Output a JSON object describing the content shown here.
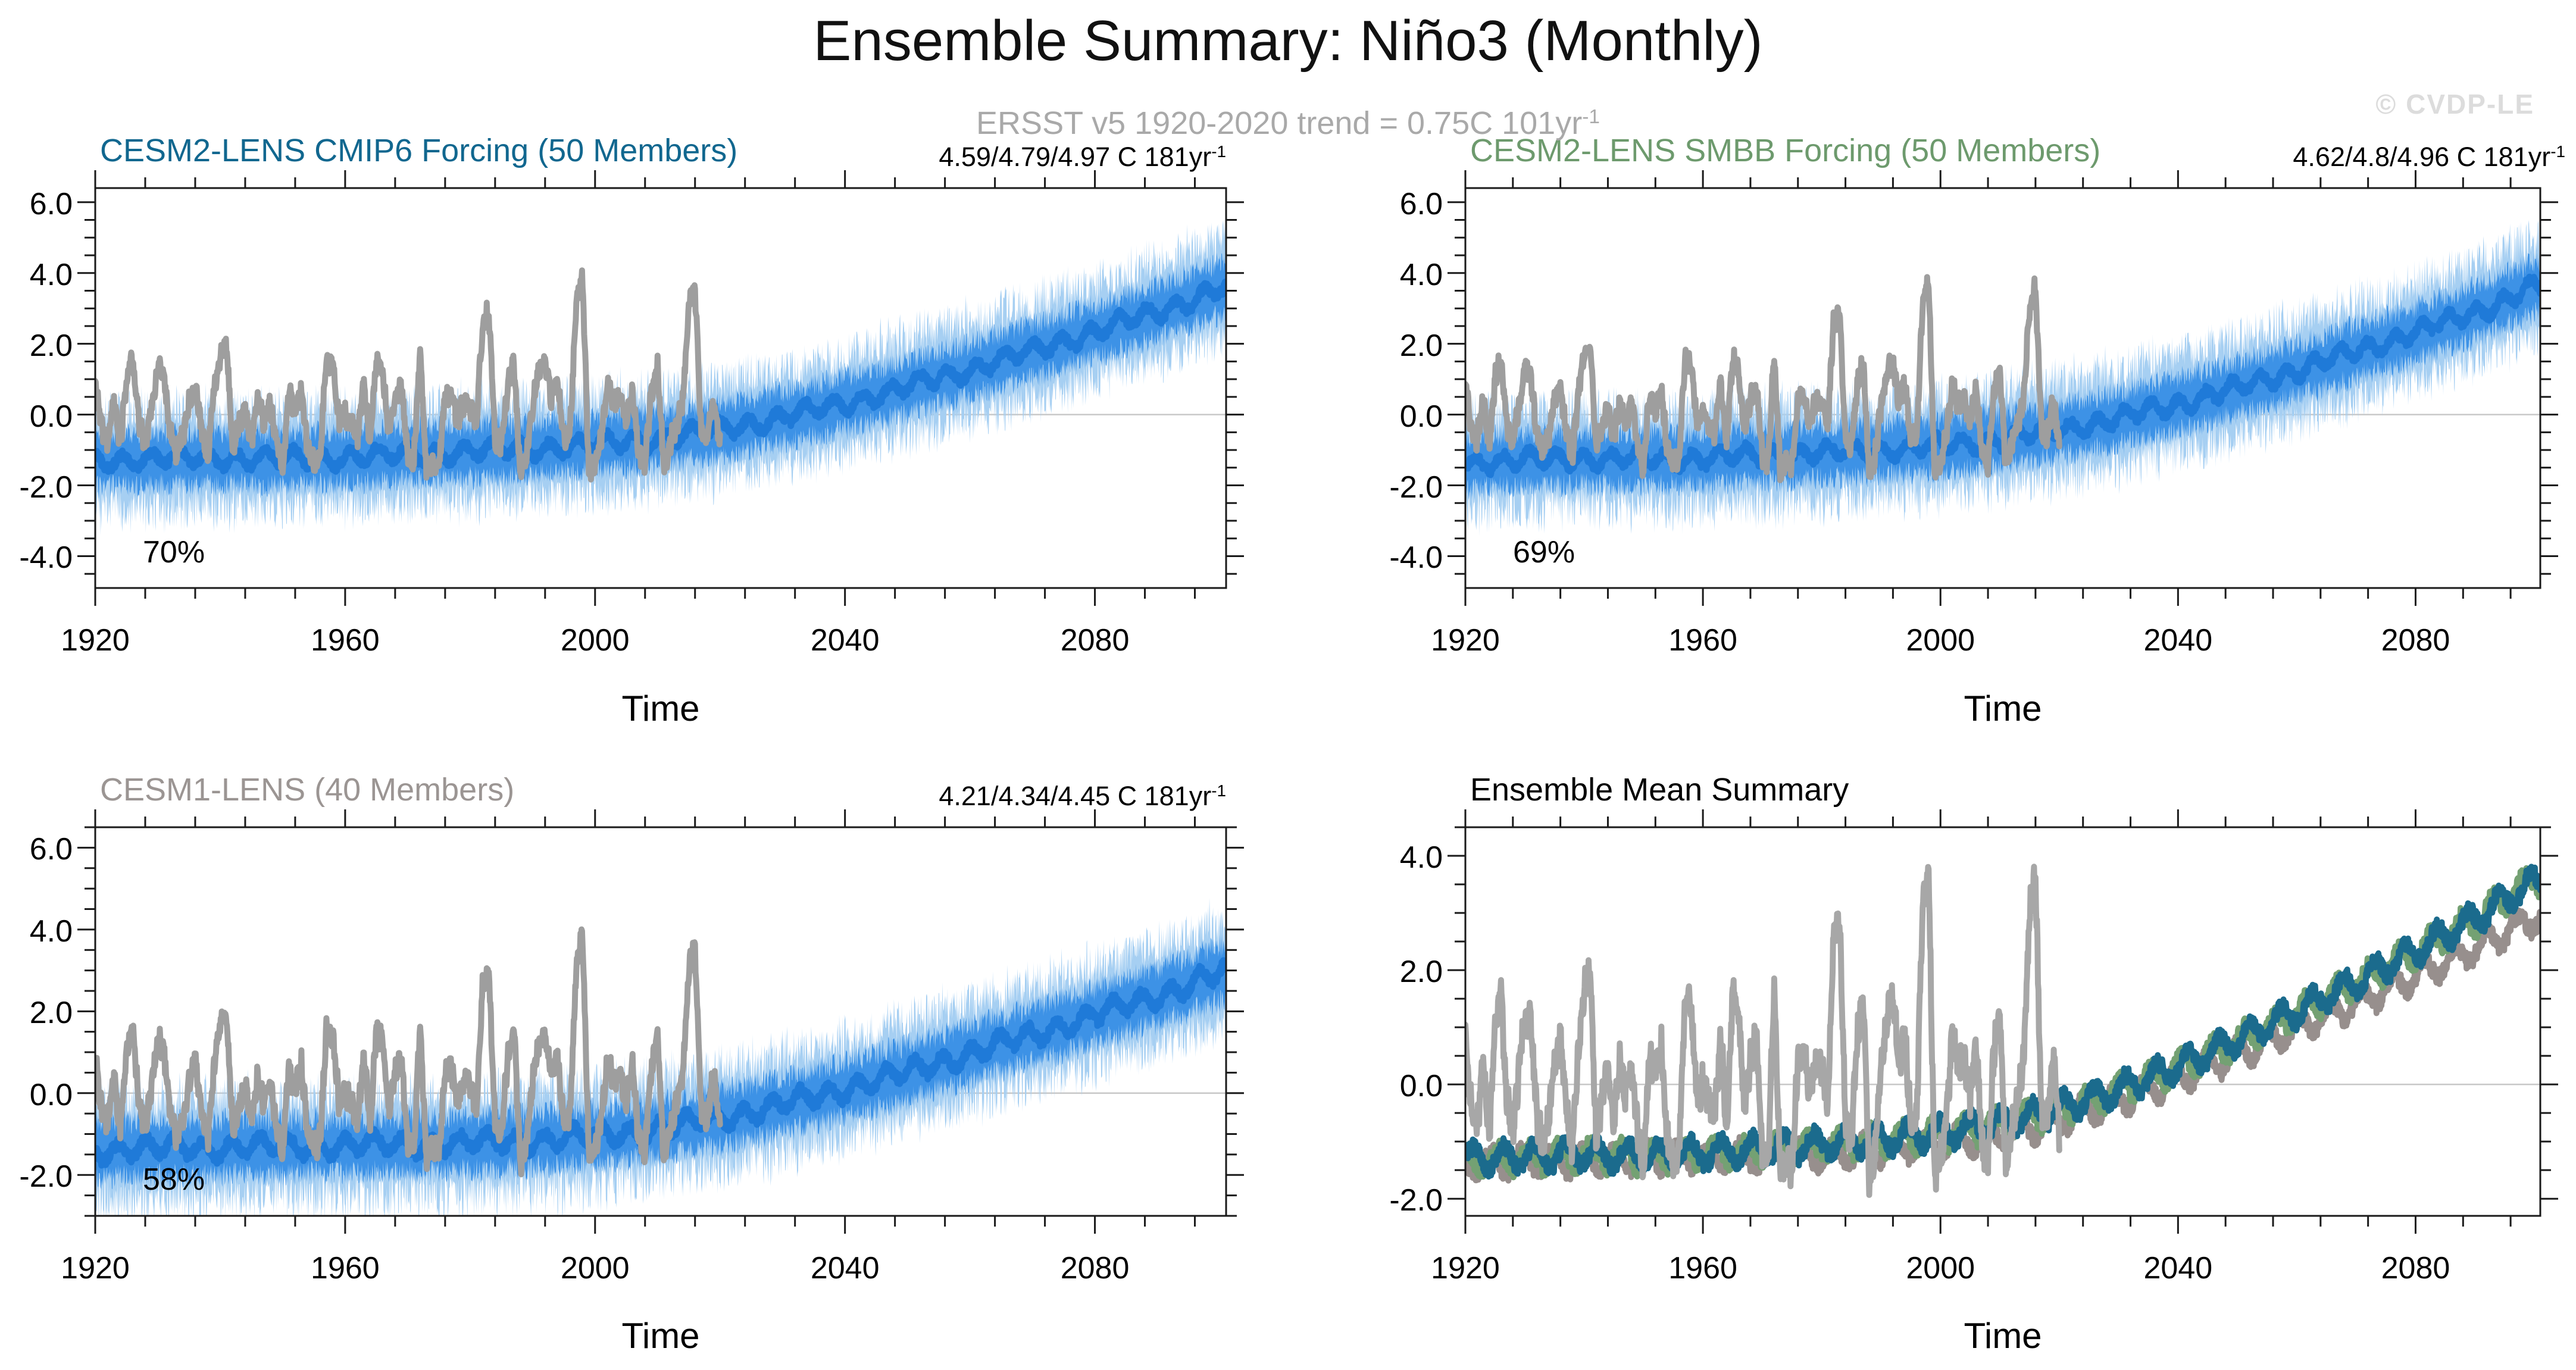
{
  "header": {
    "title": "Ensemble Summary: Niño3 (Monthly)",
    "subtitle": "ERSST v5 1920-2020 trend = 0.75C 101yr",
    "subtitle_sup": "-1",
    "watermark": "© CVDP-LE"
  },
  "colors": {
    "band_outer": "#a6cff2",
    "band_inner": "#3d92e6",
    "ensemble_mean": "#1f7ad8",
    "observations": "#9e9e9e",
    "observations_summary": "#a7a7a7",
    "zero_line": "#c8c8c8",
    "axis": "#1a1a1a",
    "subtitle_gray": "#a9a9a9",
    "watermark_gray": "#dcdcdc"
  },
  "observations": {
    "name": "ERSST v5",
    "start_year": 1920,
    "end_year": 2020,
    "values": [
      0.9,
      -0.4,
      -0.7,
      0.4,
      -0.9,
      1.0,
      1.6,
      -0.3,
      -0.8,
      0.2,
      1.3,
      1.1,
      -0.5,
      -1.1,
      -0.6,
      0.3,
      0.8,
      -0.4,
      -1.2,
      0.6,
      1.7,
      1.9,
      -0.9,
      -0.3,
      0.2,
      -0.7,
      0.4,
      -0.2,
      0.3,
      -0.8,
      -1.5,
      0.6,
      0.1,
      0.7,
      -1.0,
      -1.4,
      -1.1,
      1.5,
      1.4,
      -0.2,
      0.0,
      -0.3,
      -0.6,
      0.9,
      -0.8,
      1.6,
      1.2,
      -0.5,
      0.5,
      0.8,
      -1.2,
      -1.3,
      1.8,
      -1.6,
      -1.4,
      -1.5,
      0.5,
      0.6,
      -0.2,
      0.4,
      0.3,
      -0.4,
      2.6,
      2.9,
      -0.7,
      -0.9,
      0.8,
      1.6,
      -1.7,
      -1.2,
      0.3,
      1.2,
      1.5,
      0.4,
      0.9,
      -0.7,
      -0.5,
      3.2,
      3.8,
      -1.6,
      -1.3,
      -0.6,
      0.9,
      0.3,
      0.5,
      -0.2,
      0.7,
      -1.1,
      -1.4,
      0.6,
      1.3,
      -1.5,
      -0.8,
      -0.3,
      0.4,
      3.0,
      3.6,
      -0.5,
      -0.6,
      0.5,
      -0.9
    ]
  },
  "chart_data": [
    {
      "name": "cesm2-lens-cmip6",
      "type": "ensemble-band-line",
      "title": "CESM2-LENS CMIP6 Forcing (50 Members)",
      "title_color": "#11678f",
      "trend": "4.59/4.79/4.97 C 181yr",
      "trend_sup": "-1",
      "pct": "70%",
      "xlabel": "Time",
      "xlim": [
        1920,
        2101
      ],
      "ylim": [
        -4.9,
        6.4
      ],
      "xticks": [
        1920,
        1960,
        2000,
        2040,
        2080
      ],
      "yticks": [
        6,
        4,
        2,
        0,
        -2,
        -4
      ],
      "ytick_labels": [
        "6.0",
        "4.0",
        "2.0",
        "0.0",
        "-2.0",
        "-4.0"
      ],
      "band_outer_halfwidth": 1.45,
      "band_inner_halfwidth": 0.8,
      "mean_start_year": 1920,
      "mean_step": 10,
      "mean_values": [
        -1.3,
        -1.25,
        -1.22,
        -1.25,
        -1.2,
        -1.12,
        -1.05,
        -0.95,
        -0.85,
        -0.68,
        -0.42,
        -0.08,
        0.32,
        0.78,
        1.28,
        1.8,
        2.35,
        2.9,
        3.55
      ],
      "show_obs": true
    },
    {
      "name": "cesm2-lens-smbb",
      "type": "ensemble-band-line",
      "title": "CESM2-LENS SMBB Forcing (50 Members)",
      "title_color": "#6d9a6d",
      "trend": "4.62/4.8/4.96 C 181yr",
      "trend_sup": "-1",
      "pct": "69%",
      "xlabel": "Time",
      "xlim": [
        1920,
        2101
      ],
      "ylim": [
        -4.9,
        6.4
      ],
      "xticks": [
        1920,
        1960,
        2000,
        2040,
        2080
      ],
      "yticks": [
        6,
        4,
        2,
        0,
        -2,
        -4
      ],
      "ytick_labels": [
        "6.0",
        "4.0",
        "2.0",
        "0.0",
        "-2.0",
        "-4.0"
      ],
      "band_outer_halfwidth": 1.45,
      "band_inner_halfwidth": 0.8,
      "mean_start_year": 1920,
      "mean_step": 10,
      "mean_values": [
        -1.35,
        -1.28,
        -1.24,
        -1.27,
        -1.22,
        -1.15,
        -1.08,
        -0.98,
        -0.88,
        -0.7,
        -0.45,
        -0.1,
        0.3,
        0.75,
        1.25,
        1.78,
        2.32,
        2.88,
        3.6
      ],
      "show_obs": true
    },
    {
      "name": "cesm1-lens",
      "type": "ensemble-band-line",
      "title": "CESM1-LENS (40 Members)",
      "title_color": "#9b9593",
      "trend": "4.21/4.34/4.45 C 181yr",
      "trend_sup": "-1",
      "pct": "58%",
      "xlabel": "Time",
      "xlim": [
        1920,
        2101
      ],
      "ylim": [
        -3.0,
        6.5
      ],
      "xticks": [
        1920,
        1960,
        2000,
        2040,
        2080
      ],
      "yticks": [
        6,
        4,
        2,
        0,
        -2
      ],
      "ytick_labels": [
        "6.0",
        "4.0",
        "2.0",
        "0.0",
        "-2.0"
      ],
      "band_outer_halfwidth": 1.3,
      "band_inner_halfwidth": 0.72,
      "mean_start_year": 1920,
      "mean_step": 10,
      "mean_values": [
        -1.4,
        -1.35,
        -1.32,
        -1.3,
        -1.28,
        -1.26,
        -1.22,
        -1.15,
        -1.05,
        -0.88,
        -0.62,
        -0.28,
        0.1,
        0.52,
        0.98,
        1.42,
        1.9,
        2.38,
        2.92
      ],
      "show_obs": true
    },
    {
      "name": "ensemble-mean-summary",
      "type": "multi-line",
      "title": "Ensemble Mean Summary",
      "title_color": "#000000",
      "xlabel": "Time",
      "xlim": [
        1920,
        2101
      ],
      "ylim": [
        -2.3,
        4.5
      ],
      "xticks": [
        1920,
        1960,
        2000,
        2040,
        2080
      ],
      "yticks": [
        4,
        2,
        0,
        -2
      ],
      "ytick_labels": [
        "4.0",
        "2.0",
        "0.0",
        "-2.0"
      ],
      "series": [
        {
          "name": "CESM1-LENS",
          "color": "#978f8d",
          "start_year": 1920,
          "step": 10,
          "values": [
            -1.4,
            -1.35,
            -1.32,
            -1.3,
            -1.28,
            -1.26,
            -1.22,
            -1.15,
            -1.05,
            -0.88,
            -0.62,
            -0.28,
            0.1,
            0.52,
            0.98,
            1.42,
            1.9,
            2.38,
            2.92
          ]
        },
        {
          "name": "CESM2-LENS SMBB",
          "color": "#74a173",
          "start_year": 1920,
          "step": 10,
          "values": [
            -1.35,
            -1.28,
            -1.24,
            -1.27,
            -1.22,
            -1.15,
            -1.08,
            -0.98,
            -0.88,
            -0.7,
            -0.45,
            -0.1,
            0.3,
            0.75,
            1.25,
            1.78,
            2.32,
            2.88,
            3.6
          ]
        },
        {
          "name": "CESM2-LENS CMIP6",
          "color": "#1b6b8d",
          "start_year": 1920,
          "step": 10,
          "values": [
            -1.3,
            -1.25,
            -1.22,
            -1.25,
            -1.2,
            -1.12,
            -1.05,
            -0.95,
            -0.85,
            -0.68,
            -0.42,
            -0.08,
            0.32,
            0.78,
            1.28,
            1.8,
            2.35,
            2.9,
            3.55
          ]
        }
      ],
      "show_obs": true
    }
  ]
}
